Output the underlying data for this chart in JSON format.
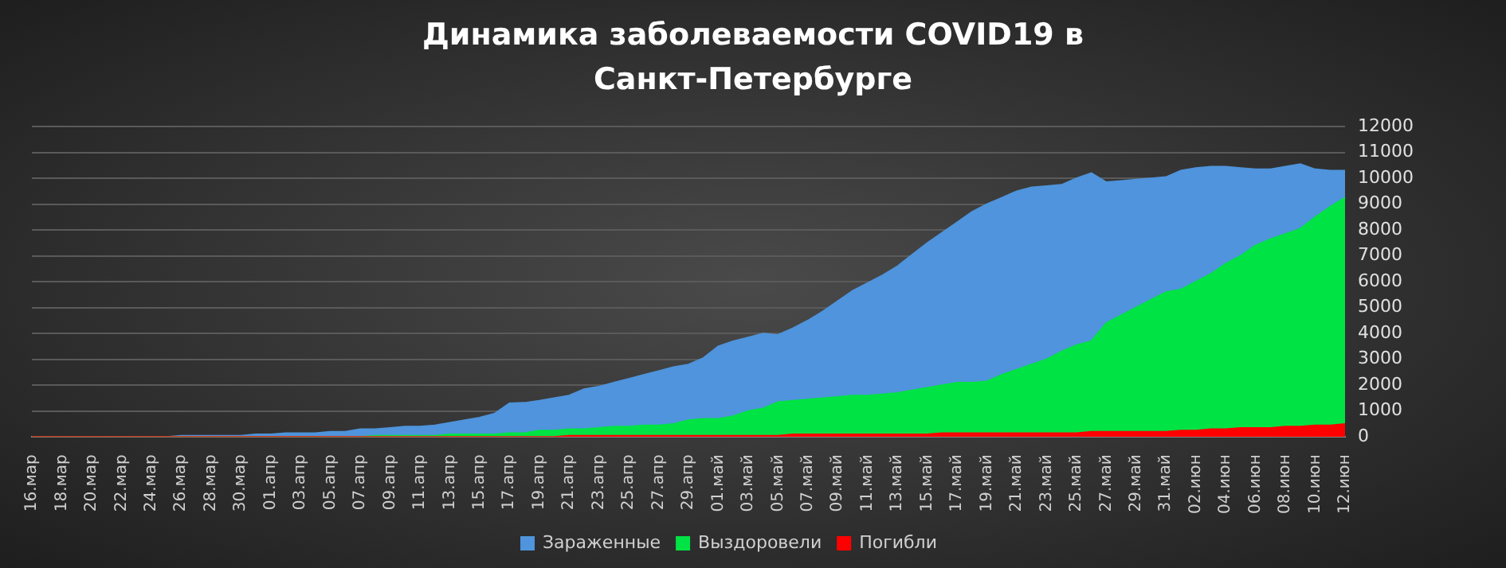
{
  "chart_data": {
    "type": "area",
    "title": "Динамика заболеваемости COVID19 в Санкт-Петербурге",
    "categories": [
      "16.мар",
      null,
      "18.мар",
      null,
      "20.мар",
      null,
      "22.мар",
      null,
      "24.мар",
      null,
      "26.мар",
      null,
      "28.мар",
      null,
      "30.мар",
      null,
      "01.апр",
      null,
      "03.апр",
      null,
      "05.апр",
      null,
      "07.апр",
      null,
      "09.апр",
      null,
      "11.апр",
      null,
      "13.апр",
      null,
      "15.апр",
      null,
      "17.апр",
      null,
      "19.апр",
      null,
      "21.апр",
      null,
      "23.апр",
      null,
      "25.апр",
      null,
      "27.апр",
      null,
      "29.апр",
      null,
      "01.май",
      null,
      "03.май",
      null,
      "05.май",
      null,
      "07.май",
      null,
      "09.май",
      null,
      "11.май",
      null,
      "13.май",
      null,
      "15.май",
      null,
      "17.май",
      null,
      "19.май",
      null,
      "21.май",
      null,
      "23.май",
      null,
      "25.май",
      null,
      "27.май",
      null,
      "29.май",
      null,
      "31.май",
      null,
      "02.июн",
      null,
      "04.июн",
      null,
      "06.июн",
      null,
      "08.июн",
      null,
      "10.июн",
      null,
      "12.июн"
    ],
    "series": [
      {
        "name": "Зараженные",
        "color": "#4f94dc",
        "values": [
          0,
          0,
          0,
          0,
          0,
          0,
          0,
          0,
          0,
          0,
          50,
          50,
          50,
          50,
          50,
          100,
          100,
          150,
          150,
          150,
          200,
          200,
          300,
          300,
          350,
          400,
          400,
          450,
          550,
          650,
          750,
          900,
          1300,
          1320,
          1400,
          1500,
          1600,
          1850,
          1950,
          2100,
          2250,
          2400,
          2550,
          2700,
          2800,
          3050,
          3500,
          3700,
          3850,
          4000,
          3950,
          4200,
          4500,
          4850,
          5250,
          5650,
          5950,
          6250,
          6600,
          7050,
          7500,
          7900,
          8300,
          8700,
          9000,
          9250,
          9500,
          9650,
          9700,
          9750,
          10000,
          10200,
          9850,
          9900,
          9950,
          10000,
          10050,
          10300,
          10400,
          10450,
          10450,
          10400,
          10350,
          10350,
          10450,
          10550,
          10350,
          10300,
          10300
        ]
      },
      {
        "name": "Выздоровели",
        "color": "#00e344",
        "values": [
          0,
          0,
          0,
          0,
          0,
          0,
          0,
          0,
          0,
          0,
          0,
          0,
          0,
          0,
          0,
          0,
          0,
          0,
          0,
          0,
          0,
          0,
          0,
          50,
          50,
          50,
          50,
          50,
          100,
          100,
          100,
          100,
          150,
          150,
          250,
          250,
          300,
          300,
          350,
          400,
          400,
          450,
          450,
          500,
          650,
          700,
          700,
          800,
          1000,
          1100,
          1350,
          1400,
          1450,
          1500,
          1550,
          1600,
          1600,
          1650,
          1700,
          1800,
          1900,
          2000,
          2100,
          2100,
          2150,
          2400,
          2600,
          2800,
          3000,
          3300,
          3550,
          3700,
          4400,
          4700,
          5000,
          5300,
          5600,
          5700,
          6000,
          6300,
          6700,
          7000,
          7400,
          7650,
          7850,
          8050,
          8500,
          8900,
          9250
        ]
      },
      {
        "name": "Погибли",
        "color": "#ff0000",
        "values": [
          0,
          0,
          0,
          0,
          0,
          0,
          0,
          0,
          0,
          0,
          0,
          0,
          0,
          0,
          0,
          0,
          0,
          0,
          0,
          0,
          0,
          0,
          0,
          0,
          0,
          0,
          0,
          0,
          0,
          0,
          0,
          0,
          0,
          0,
          0,
          0,
          50,
          50,
          50,
          50,
          50,
          50,
          50,
          50,
          50,
          50,
          50,
          50,
          50,
          50,
          50,
          100,
          100,
          100,
          100,
          100,
          100,
          100,
          100,
          100,
          100,
          150,
          150,
          150,
          150,
          150,
          150,
          150,
          150,
          150,
          150,
          200,
          200,
          200,
          200,
          200,
          200,
          250,
          250,
          300,
          300,
          350,
          350,
          350,
          400,
          400,
          450,
          450,
          500
        ]
      }
    ],
    "ylim": [
      0,
      12000
    ],
    "yticks": [
      0,
      1000,
      2000,
      3000,
      4000,
      5000,
      6000,
      7000,
      8000,
      9000,
      10000,
      11000,
      12000
    ],
    "grid": "y",
    "legend": "bottom",
    "marker": "none"
  }
}
